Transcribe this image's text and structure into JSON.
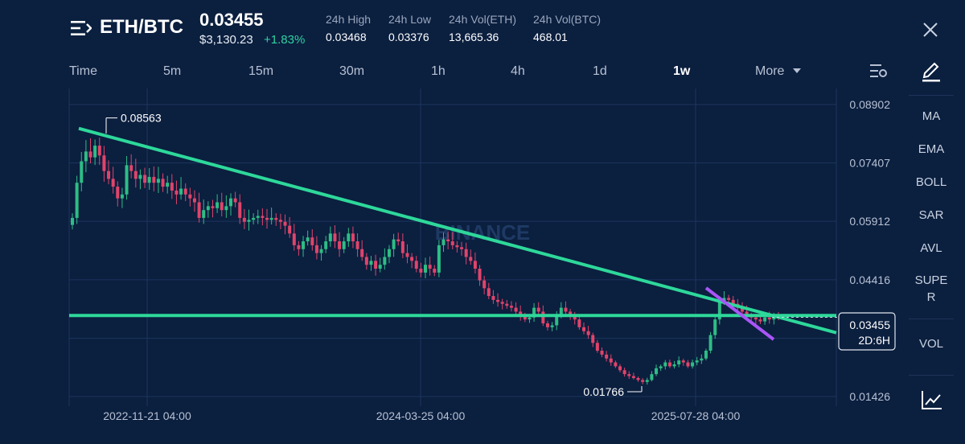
{
  "header": {
    "pair": "ETH/BTC",
    "price": "0.03455",
    "fiat_price": "$3,130.23",
    "change": "+1.83%",
    "stats": [
      {
        "label": "24h High",
        "value": "0.03468"
      },
      {
        "label": "24h Low",
        "value": "0.03376"
      },
      {
        "label": "24h Vol(ETH)",
        "value": "13,665.36"
      },
      {
        "label": "24h Vol(BTC)",
        "value": "468.01"
      }
    ]
  },
  "timeframes": [
    {
      "label": "Time"
    },
    {
      "label": "5m"
    },
    {
      "label": "15m"
    },
    {
      "label": "30m"
    },
    {
      "label": "1h"
    },
    {
      "label": "4h"
    },
    {
      "label": "1d"
    },
    {
      "label": "1w",
      "active": true
    },
    {
      "label": "More"
    }
  ],
  "sidebar": {
    "indicators": [
      "MA",
      "EMA",
      "BOLL",
      "SAR",
      "AVL",
      "SUPE",
      "R",
      "VOL"
    ]
  },
  "chart_data": {
    "type": "candlestick",
    "watermark": "BINANCE",
    "y_ticks": [
      "0.08902",
      "0.07407",
      "0.05912",
      "0.04416",
      "0.01426"
    ],
    "x_ticks": [
      "2022-11-21 04:00",
      "2024-03-25 04:00",
      "2025-07-28 04:00"
    ],
    "ylim": [
      0.01426,
      0.08902
    ],
    "high_label": "0.08563",
    "low_label": "0.01766",
    "current_price": "0.03455",
    "countdown": "2D:6H",
    "colors": {
      "up": "#2ebd85",
      "down": "#e0446b",
      "trendline": "#2ed89a",
      "short_trend": "#a855f7",
      "grid": "#1c355e"
    },
    "trendlines": [
      {
        "name": "falling",
        "from": [
          0.0829,
          0
        ],
        "to": [
          0.0306,
          1
        ]
      },
      {
        "name": "horizontal",
        "value": 0.035
      },
      {
        "name": "short",
        "color": "purple"
      }
    ],
    "closes": [
      0.06,
      0.069,
      0.0745,
      0.077,
      0.0755,
      0.0785,
      0.076,
      0.072,
      0.07,
      0.068,
      0.065,
      0.066,
      0.0735,
      0.072,
      0.07,
      0.071,
      0.069,
      0.0705,
      0.069,
      0.07,
      0.068,
      0.069,
      0.067,
      0.066,
      0.0675,
      0.066,
      0.065,
      0.064,
      0.06,
      0.062,
      0.063,
      0.0625,
      0.064,
      0.062,
      0.063,
      0.065,
      0.064,
      0.06,
      0.059,
      0.0595,
      0.06,
      0.0605,
      0.06,
      0.0595,
      0.06,
      0.0595,
      0.059,
      0.058,
      0.056,
      0.053,
      0.052,
      0.054,
      0.055,
      0.053,
      0.051,
      0.052,
      0.054,
      0.056,
      0.054,
      0.052,
      0.054,
      0.056,
      0.054,
      0.052,
      0.05,
      0.048,
      0.049,
      0.047,
      0.048,
      0.05,
      0.052,
      0.0545,
      0.054,
      0.051,
      0.05,
      0.049,
      0.047,
      0.046,
      0.048,
      0.047,
      0.046,
      0.053,
      0.0545,
      0.054,
      0.053,
      0.0525,
      0.052,
      0.05,
      0.049,
      0.047,
      0.044,
      0.042,
      0.04,
      0.039,
      0.0385,
      0.038,
      0.0375,
      0.037,
      0.036,
      0.035,
      0.034,
      0.0345,
      0.037,
      0.036,
      0.033,
      0.032,
      0.0325,
      0.035,
      0.037,
      0.036,
      0.035,
      0.034,
      0.032,
      0.031,
      0.03,
      0.028,
      0.026,
      0.025,
      0.024,
      0.023,
      0.022,
      0.021,
      0.02,
      0.0195,
      0.019,
      0.0185,
      0.018,
      0.0185,
      0.02,
      0.0215,
      0.022,
      0.023,
      0.022,
      0.0225,
      0.0235,
      0.023,
      0.022,
      0.023,
      0.0235,
      0.024,
      0.026,
      0.03,
      0.034,
      0.0385,
      0.0395,
      0.039,
      0.038,
      0.037,
      0.036,
      0.035,
      0.0345,
      0.034,
      0.0335,
      0.0345,
      0.034,
      0.035,
      0.0345
    ]
  }
}
